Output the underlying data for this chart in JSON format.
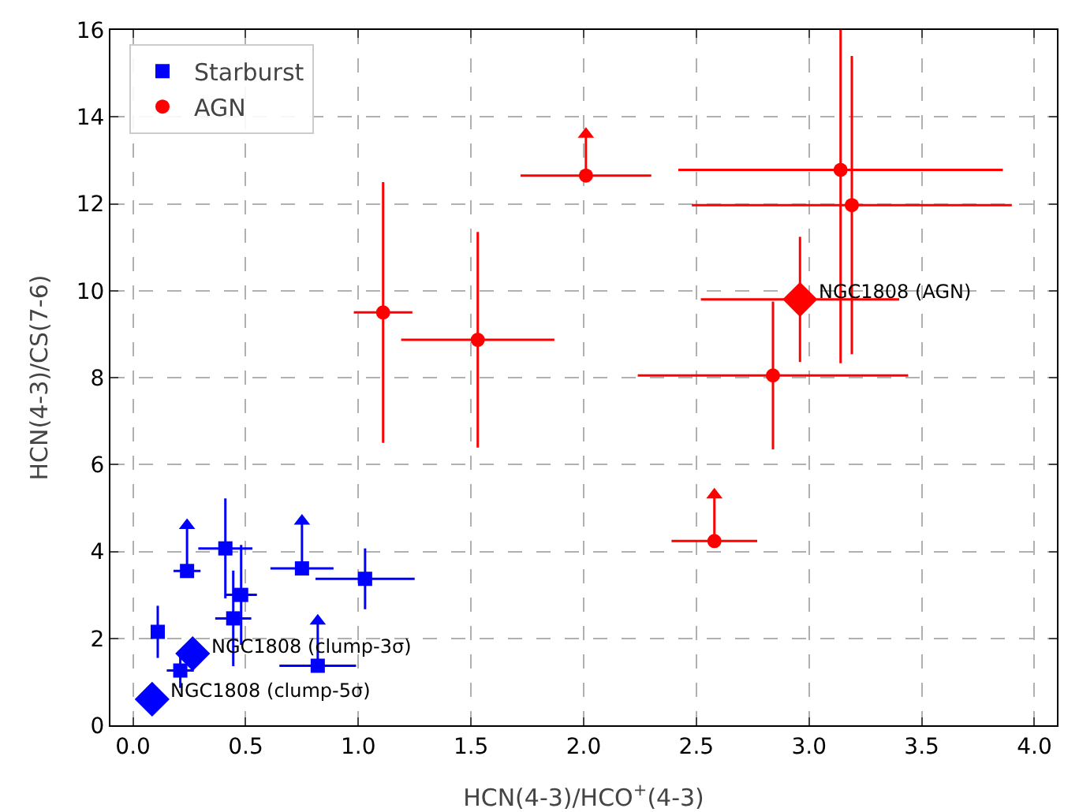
{
  "chart_data": {
    "type": "scatter",
    "xlabel": "HCN(4-3)/HCO$^{+}$(4-3)",
    "ylabel": "HCN(4-3)/CS(7-6)",
    "xlim": [
      -0.1,
      4.1
    ],
    "xticks": [
      {
        "value": 0,
        "label": "0.0"
      },
      0.5,
      {
        "value": 1,
        "label": "1.0"
      },
      1.5,
      {
        "value": 2,
        "label": "2.0"
      },
      2.5,
      {
        "value": 3,
        "label": "3.0"
      },
      3.5,
      {
        "value": 4,
        "label": "4.0"
      }
    ],
    "ylim": [
      0,
      16
    ],
    "yticks": [
      0,
      2,
      4,
      6,
      8,
      10,
      12,
      14,
      16
    ],
    "grid": true,
    "legend": "top left",
    "series": [
      {
        "name": "Starburst",
        "color": "#0000ff",
        "marker": "square",
        "x": [
          0.11,
          0.24,
          0.41,
          0.48,
          0.445,
          0.75,
          1.03,
          0.82,
          0.21
        ],
        "values": [
          2.15,
          3.55,
          4.07,
          3.0,
          2.46,
          3.61,
          3.37,
          1.37,
          1.26
        ],
        "errors": [
          0.6,
          [
            3.55,
            4.6
          ],
          1.15,
          1.15,
          1.1,
          [
            3.61,
            4.7
          ],
          0.7,
          [
            1.37,
            2.4
          ],
          0.4
        ],
        "xerrors": [
          null,
          0.06,
          0.12,
          0.07,
          0.08,
          0.14,
          0.22,
          0.17,
          0.06
        ]
      },
      {
        "name": "AGN",
        "color": "#ff0000",
        "marker": "circle",
        "x": [
          1.11,
          1.53,
          2.01,
          3.14,
          3.19,
          2.84,
          2.58
        ],
        "values": [
          9.5,
          8.87,
          12.65,
          12.78,
          11.97,
          8.05,
          4.24
        ],
        "errors": [
          3.0,
          2.48,
          [
            12.65,
            13.6
          ],
          [
            8.33,
            16
          ],
          3.43,
          1.7,
          [
            4.24,
            5.3
          ]
        ],
        "xerrors": [
          0.13,
          0.34,
          0.29,
          0.72,
          0.71,
          0.6,
          0.19
        ]
      },
      {
        "color": "#0000ff",
        "marker": "triangle",
        "x": [
          0.24,
          0.75,
          0.82
        ],
        "values": [
          4.6,
          4.7,
          2.4
        ]
      },
      {
        "color": "#ff0000",
        "marker": "triangle",
        "x": [
          2.01,
          2.58
        ],
        "values": [
          13.6,
          5.3
        ]
      },
      {
        "color": "#0000ff",
        "marker": "diamond",
        "x": [
          0.265,
          0.085
        ],
        "values": [
          1.65,
          0.6
        ]
      },
      {
        "color": "#ff0000",
        "marker": "diamond",
        "x": [
          2.96
        ],
        "values": [
          9.8
        ],
        "errors": [
          1.44
        ],
        "xerrors": [
          0.44
        ]
      }
    ],
    "annotations": [
      {
        "text": "NGC1808 (clump-3σ)",
        "x": 0.265,
        "y": 1.65
      },
      {
        "text": "NGC1808 (clump-5σ)",
        "x": 0.085,
        "y": 0.6
      },
      {
        "text": "NGC1808 (AGN)",
        "x": 2.96,
        "y": 9.8
      }
    ]
  }
}
